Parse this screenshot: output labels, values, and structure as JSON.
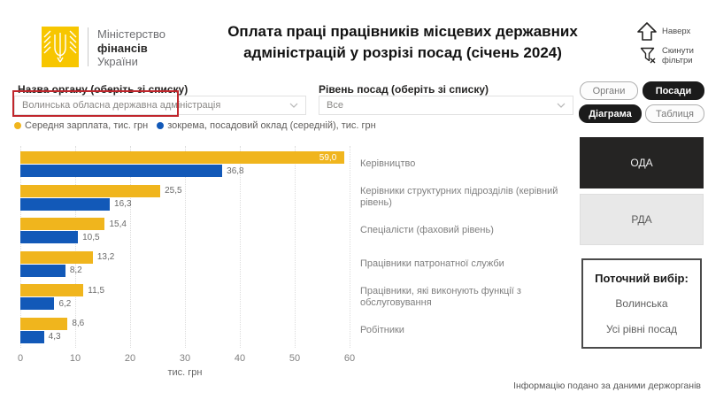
{
  "header": {
    "ministry_line1": "Міністерство",
    "ministry_line2": "фінансів",
    "ministry_line3": "України",
    "title": "Оплата праці працівників місцевих державних адміністрацій у розрізі посад (січень 2024)",
    "nav_up_label": "Наверх",
    "reset_filters_label": "Скинути фільтри"
  },
  "filters": {
    "org": {
      "label": "Назва органу (оберіть зі списку)",
      "value": "Волинська обласна державна адміністрація"
    },
    "level": {
      "label": "Рівень посад (оберіть зі списку)",
      "value": "Все"
    }
  },
  "toggles": {
    "organs": "Органи",
    "positions": "Посади",
    "diagram": "Діаграма",
    "table": "Таблиця"
  },
  "legend": [
    {
      "label": "Середня зарплата, тис. грн",
      "color": "#f0b51d"
    },
    {
      "label": "зокрема, посадовий оклад (середній), тис. грн",
      "color": "#1259b8"
    }
  ],
  "chart_data": {
    "type": "bar",
    "orientation": "horizontal",
    "categories": [
      "Керівництво",
      "Керівники структурних підрозділів (керівний рівень)",
      "Спеціалісти (фаховий рівень)",
      "Працівники патронатної служби",
      "Працівники, які виконують функції з обслуговування",
      "Робітники"
    ],
    "series": [
      {
        "name": "Середня зарплата, тис. грн",
        "color": "#f0b51d",
        "values": [
          59.0,
          25.5,
          15.4,
          13.2,
          11.5,
          8.6
        ]
      },
      {
        "name": "зокрема, посадовий оклад (середній), тис. грн",
        "color": "#1259b8",
        "values": [
          36.8,
          16.3,
          10.5,
          8.2,
          6.2,
          4.3
        ]
      }
    ],
    "xlim": [
      0,
      60
    ],
    "xticks": [
      0,
      10,
      20,
      30,
      40,
      50,
      60
    ],
    "xlabel": "тис. грн",
    "grid": "dotted-vertical",
    "value_label_decimal_separator": ","
  },
  "side_panel": {
    "oda_label": "ОДА",
    "rda_label": "РДА",
    "current_title": "Поточний вибір:",
    "current_org": "Волинська",
    "current_level": "Усі рівні посад"
  },
  "footer": {
    "note": "Інформацію подано за даними держорганів"
  }
}
